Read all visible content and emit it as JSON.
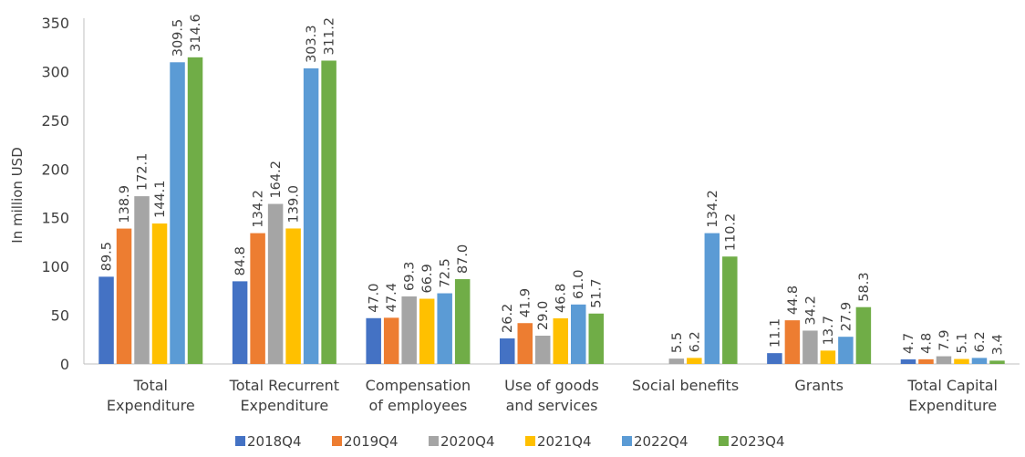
{
  "chart_data": {
    "type": "bar",
    "ylabel": "In million USD",
    "ylim": [
      0,
      350
    ],
    "yticks": [
      0,
      50,
      100,
      150,
      200,
      250,
      300,
      350
    ],
    "grid": false,
    "legend_position": "bottom",
    "categories": [
      [
        "Total",
        "Expenditure"
      ],
      [
        "Total Recurrent",
        "Expenditure"
      ],
      [
        "Compensation",
        "of employees"
      ],
      [
        "Use of goods",
        "and services"
      ],
      [
        "Social benefits"
      ],
      [
        "Grants"
      ],
      [
        "Total Capital",
        "Expenditure"
      ]
    ],
    "series": [
      {
        "name": "2018Q4",
        "color": "#4472C4",
        "values": [
          89.5,
          84.8,
          47.0,
          26.2,
          null,
          11.1,
          4.7
        ],
        "labels": [
          "89.5",
          "84.8",
          "47.0",
          "26.2",
          "",
          "11.1",
          "4.7"
        ]
      },
      {
        "name": "2019Q4",
        "color": "#ED7D31",
        "values": [
          138.9,
          134.2,
          47.4,
          41.9,
          null,
          44.8,
          4.8
        ],
        "labels": [
          "138.9",
          "134.2",
          "47.4",
          "41.9",
          "",
          "44.8",
          "4.8"
        ]
      },
      {
        "name": "2020Q4",
        "color": "#A5A5A5",
        "values": [
          172.1,
          164.2,
          69.3,
          29.0,
          5.5,
          34.2,
          7.9
        ],
        "labels": [
          "172.1",
          "164.2",
          "69.3",
          "29.0",
          "5.5",
          "34.2",
          "7.9"
        ]
      },
      {
        "name": "2021Q4",
        "color": "#FFC000",
        "values": [
          144.1,
          139.0,
          66.9,
          46.8,
          6.2,
          13.7,
          5.1
        ],
        "labels": [
          "144.1",
          "139.0",
          "66.9",
          "46.8",
          "6.2",
          "13.7",
          "5.1"
        ]
      },
      {
        "name": "2022Q4",
        "color": "#5B9BD5",
        "values": [
          309.5,
          303.3,
          72.5,
          61.0,
          134.2,
          27.9,
          6.2
        ],
        "labels": [
          "309.5",
          "303.3",
          "72.5",
          "61.0",
          "134.2",
          "27.9",
          "6.2"
        ]
      },
      {
        "name": "2023Q4",
        "color": "#70AD47",
        "values": [
          314.6,
          311.2,
          87.0,
          51.7,
          110.2,
          58.3,
          3.4
        ],
        "labels": [
          "314.6",
          "311.2",
          "87.0",
          "51.7",
          "110.2",
          "58.3",
          "3.4"
        ]
      }
    ]
  }
}
